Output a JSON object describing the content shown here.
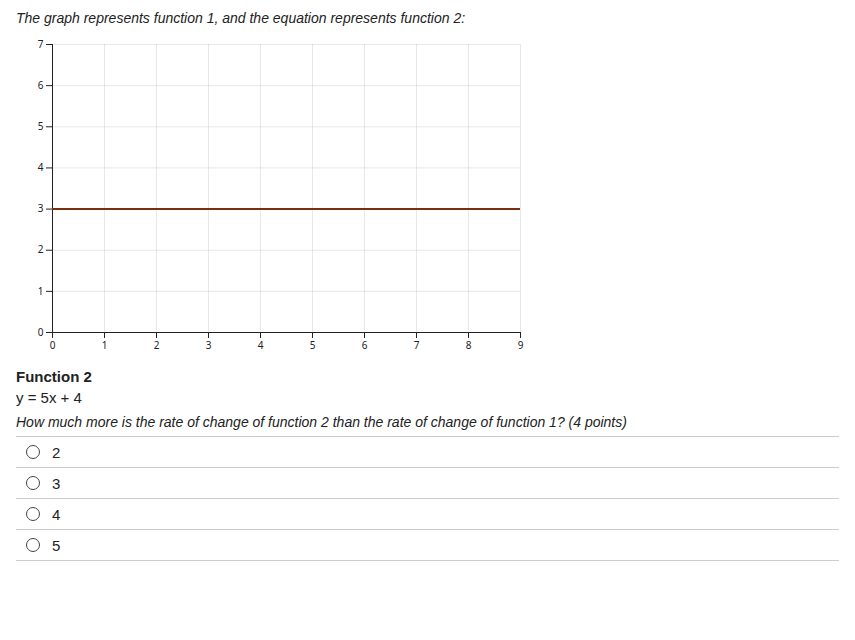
{
  "chart_data": {
    "type": "line",
    "title": "The graph represents function 1, and the equation represents function 2:",
    "x": [
      0,
      9
    ],
    "values": [
      3,
      3
    ],
    "color": "#7a3010",
    "xlim": [
      0,
      9
    ],
    "xticks": [
      0,
      1,
      2,
      3,
      4,
      5,
      6,
      7,
      8,
      9
    ],
    "ylim": [
      0,
      7
    ],
    "yticks": [
      0,
      1,
      2,
      3,
      4,
      5,
      6,
      7
    ],
    "grid": true,
    "annotations": [
      "Function 2",
      "y = 5x + 4",
      "How much more is the rate of change of function 2 than the rate of change of function 1? (4 points)"
    ],
    "choices": [
      "2",
      "3",
      "4",
      "5"
    ]
  }
}
